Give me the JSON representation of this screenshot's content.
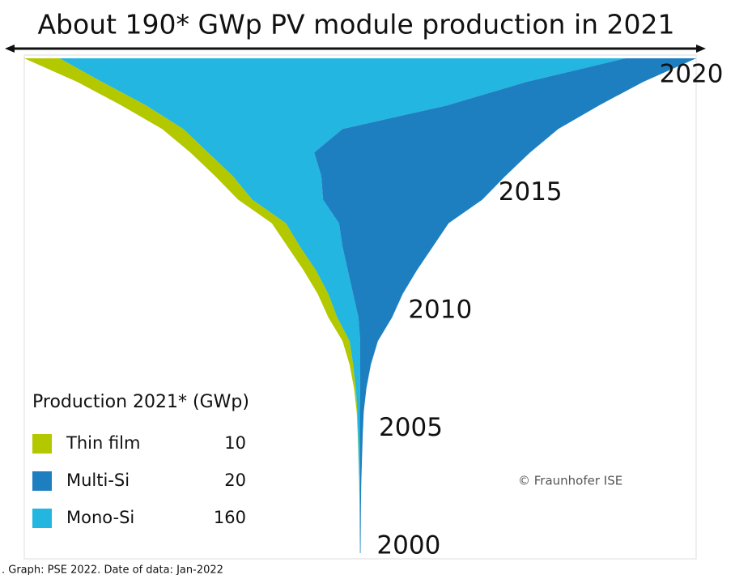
{
  "chart_data": {
    "type": "funnel-area",
    "title": "About 190* GWp PV module production in 2021",
    "x": [
      2000,
      2001,
      2002,
      2003,
      2004,
      2005,
      2006,
      2007,
      2008,
      2009,
      2010,
      2011,
      2012,
      2013,
      2014,
      2015,
      2016,
      2017,
      2018,
      2019,
      2020,
      2021
    ],
    "xlim": [
      2000,
      2021
    ],
    "xticks": [
      2000,
      2005,
      2010,
      2015,
      2020
    ],
    "legend_title": "Production 2021* (GWp)",
    "series": [
      {
        "name": "Thin film",
        "color": "#b4c800",
        "values": [
          0.01,
          0.02,
          0.03,
          0.04,
          0.05,
          0.1,
          0.2,
          0.5,
          1,
          2,
          2.5,
          3,
          3.5,
          3.5,
          4,
          4,
          5,
          5,
          6,
          7,
          7,
          10
        ]
      },
      {
        "name": "Multi-Si",
        "color": "#1e7fc0",
        "values": [
          0.1,
          0.15,
          0.2,
          0.3,
          0.55,
          0.8,
          1.1,
          1.8,
          3,
          5,
          9.5,
          14,
          19.5,
          25.5,
          31,
          45,
          52,
          61,
          61,
          43,
          33,
          20
        ]
      },
      {
        "name": "Mono-Si",
        "color": "#22b6e1",
        "values": [
          0.09,
          0.13,
          0.17,
          0.26,
          0.4,
          0.5,
          0.7,
          1.2,
          2,
          3,
          6,
          7,
          9,
          12,
          15,
          20,
          25,
          30,
          45,
          85,
          120,
          160
        ]
      }
    ],
    "copyright": "© Fraunhofer ISE",
    "footer": ". Graph: PSE 2022. Date of data: Jan-2022"
  }
}
